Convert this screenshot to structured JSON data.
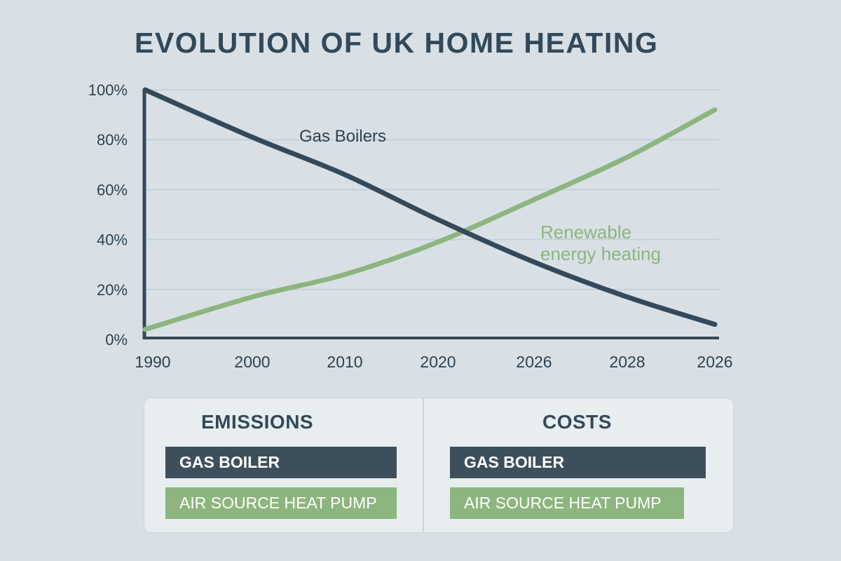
{
  "title": "EVOLUTION OF UK HOME HEATING",
  "colors": {
    "background": "#d8e0e6",
    "gas": "#34495a",
    "renewable": "#8db57e",
    "gridline": "#c3d0d8"
  },
  "chart_data": {
    "type": "line",
    "title": "EVOLUTION OF UK HOME HEATING",
    "xlabel": "",
    "ylabel": "",
    "categories": [
      "1990",
      "2000",
      "2010",
      "2020",
      "2026",
      "2028",
      "2026"
    ],
    "y_ticks": [
      "100%",
      "80%",
      "60%",
      "40%",
      "20%",
      "0%"
    ],
    "ylim": [
      0,
      100
    ],
    "grid": true,
    "legend": "inline annotations",
    "series": [
      {
        "name": "Gas Boilers",
        "color": "#34495a",
        "values": [
          98,
          81,
          66,
          48,
          31,
          17,
          6
        ]
      },
      {
        "name": "Renewable energy heating",
        "color": "#8db57e",
        "values": [
          6,
          17,
          26,
          39,
          56,
          73,
          92
        ]
      }
    ],
    "annotations": [
      "Gas Boilers",
      "Renewable energy heating"
    ]
  },
  "annotations": {
    "gas": "Gas Boilers",
    "renewable_line1": "Renewable",
    "renewable_line2": "energy heating"
  },
  "comparison": {
    "emissions": {
      "title": "EMISSIONS",
      "gas_label": "GAS BOILER",
      "ashp_label": "AIR SOURCE HEAT PUMP"
    },
    "costs": {
      "title": "COSTS",
      "gas_label": "GAS BOILER",
      "ashp_label": "AIR SOURCE HEAT PUMP"
    }
  }
}
